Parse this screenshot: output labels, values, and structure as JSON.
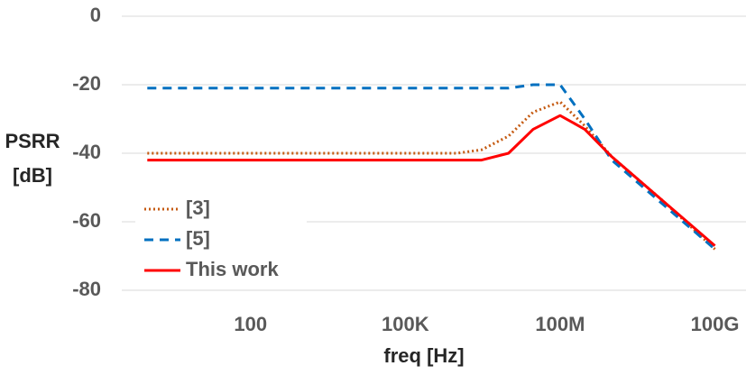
{
  "chart_data": {
    "type": "line",
    "x_label": "freq [Hz]",
    "y_label": [
      "PSRR",
      "[dB]"
    ],
    "x": [
      1,
      1000,
      100000,
      1000000,
      3000000,
      10000000,
      30000000,
      100000000,
      300000000,
      1000000000,
      10000000000,
      100000000000
    ],
    "series": [
      {
        "name": "[3]",
        "color": "#c55a11",
        "style": "dotted",
        "values": [
          -40,
          -40,
          -40,
          -40,
          -39,
          -35,
          -28,
          -25,
          -32,
          -41,
          -54,
          -68
        ]
      },
      {
        "name": "[5]",
        "color": "#0070c0",
        "style": "dashed",
        "values": [
          -21,
          -21,
          -21,
          -21,
          -21,
          -21,
          -20,
          -20,
          -30,
          -42,
          -55,
          -68
        ]
      },
      {
        "name": "This work",
        "color": "#ff0000",
        "style": "solid",
        "values": [
          -42,
          -42,
          -42,
          -42,
          -42,
          -40,
          -33,
          -29,
          -33,
          -41,
          -54,
          -67
        ]
      }
    ],
    "xscale": "log",
    "xlim": [
      0.32,
      400000000000
    ],
    "xticks": [
      100,
      {
        "value": 100000,
        "label": "100K"
      },
      {
        "value": 100000000,
        "label": "100M"
      },
      {
        "value": 100000000000,
        "label": "100G"
      }
    ],
    "ylim": [
      -80,
      0
    ],
    "yticks": [
      0,
      -20,
      -40,
      -60,
      -80
    ],
    "grid": true,
    "legend": "lower left"
  }
}
